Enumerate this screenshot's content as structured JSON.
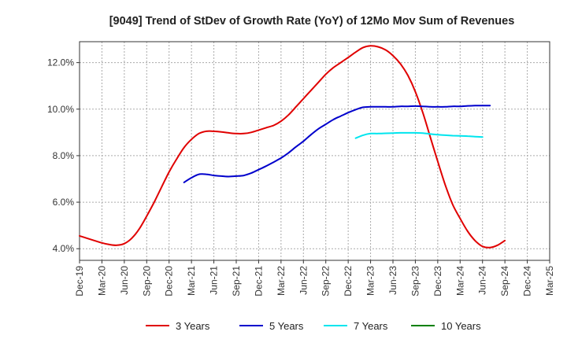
{
  "chart_data": {
    "type": "line",
    "title": "[9049]  Trend of StDev of Growth Rate (YoY) of 12Mo Mov Sum of Revenues",
    "xlabel": "",
    "ylabel": "",
    "ylim": [
      3.5,
      12.9
    ],
    "yticks": [
      4.0,
      6.0,
      8.0,
      10.0,
      12.0
    ],
    "ytick_labels": [
      "4.0%",
      "6.0%",
      "8.0%",
      "10.0%",
      "12.0%"
    ],
    "x_categories": [
      "Dec-19",
      "Jan-20",
      "Feb-20",
      "Mar-20",
      "Apr-20",
      "May-20",
      "Jun-20",
      "Jul-20",
      "Aug-20",
      "Sep-20",
      "Oct-20",
      "Nov-20",
      "Dec-20",
      "Jan-21",
      "Feb-21",
      "Mar-21",
      "Apr-21",
      "May-21",
      "Jun-21",
      "Jul-21",
      "Aug-21",
      "Sep-21",
      "Oct-21",
      "Nov-21",
      "Dec-21",
      "Jan-22",
      "Feb-22",
      "Mar-22",
      "Apr-22",
      "May-22",
      "Jun-22",
      "Jul-22",
      "Aug-22",
      "Sep-22",
      "Oct-22",
      "Nov-22",
      "Dec-22",
      "Jan-23",
      "Feb-23",
      "Mar-23",
      "Apr-23",
      "May-23",
      "Jun-23",
      "Jul-23",
      "Aug-23",
      "Sep-23",
      "Oct-23",
      "Nov-23",
      "Dec-23",
      "Jan-24",
      "Feb-24",
      "Mar-24",
      "Apr-24",
      "May-24",
      "Jun-24",
      "Jul-24",
      "Aug-24",
      "Sep-24",
      "Oct-24",
      "Nov-24",
      "Dec-24",
      "Jan-25",
      "Feb-25",
      "Mar-25"
    ],
    "x_tick_labels": [
      "Dec-19",
      "Mar-20",
      "Jun-20",
      "Sep-20",
      "Dec-20",
      "Mar-21",
      "Jun-21",
      "Sep-21",
      "Dec-21",
      "Mar-22",
      "Jun-22",
      "Sep-22",
      "Dec-22",
      "Mar-23",
      "Jun-23",
      "Sep-23",
      "Dec-23",
      "Mar-24",
      "Jun-24",
      "Sep-24",
      "Dec-24",
      "Mar-25"
    ],
    "grid": true,
    "legend_position": "bottom",
    "series": [
      {
        "name": "3 Years",
        "color": "#e00000",
        "start": "Dec-19",
        "values": [
          4.55,
          4.45,
          4.35,
          4.25,
          4.18,
          4.15,
          4.22,
          4.45,
          4.85,
          5.4,
          6.0,
          6.65,
          7.3,
          7.85,
          8.35,
          8.7,
          8.95,
          9.05,
          9.05,
          9.02,
          8.98,
          8.95,
          8.95,
          9.0,
          9.1,
          9.2,
          9.3,
          9.48,
          9.75,
          10.1,
          10.45,
          10.8,
          11.15,
          11.5,
          11.78,
          12.0,
          12.22,
          12.45,
          12.65,
          12.72,
          12.68,
          12.55,
          12.3,
          11.95,
          11.45,
          10.75,
          9.85,
          8.8,
          7.75,
          6.75,
          5.9,
          5.3,
          4.75,
          4.35,
          4.1,
          4.05,
          4.15,
          4.35
        ]
      },
      {
        "name": "5 Years",
        "color": "#0000cc",
        "start": "Feb-21",
        "values": [
          6.85,
          7.05,
          7.2,
          7.2,
          7.15,
          7.12,
          7.1,
          7.12,
          7.15,
          7.25,
          7.4,
          7.55,
          7.72,
          7.9,
          8.12,
          8.38,
          8.62,
          8.9,
          9.15,
          9.35,
          9.55,
          9.7,
          9.85,
          9.98,
          10.08,
          10.1,
          10.1,
          10.1,
          10.1,
          10.12,
          10.12,
          10.13,
          10.12,
          10.1,
          10.1,
          10.1,
          10.12,
          10.12,
          10.14,
          10.15,
          10.15,
          10.15
        ]
      },
      {
        "name": "7 Years",
        "color": "#00e5ee",
        "start": "Jan-23",
        "values": [
          8.75,
          8.88,
          8.95,
          8.95,
          8.96,
          8.97,
          8.98,
          8.98,
          8.98,
          8.97,
          8.93,
          8.9,
          8.88,
          8.86,
          8.85,
          8.84,
          8.82,
          8.8
        ]
      },
      {
        "name": "10 Years",
        "color": "#008000",
        "start": null,
        "values": []
      }
    ]
  }
}
